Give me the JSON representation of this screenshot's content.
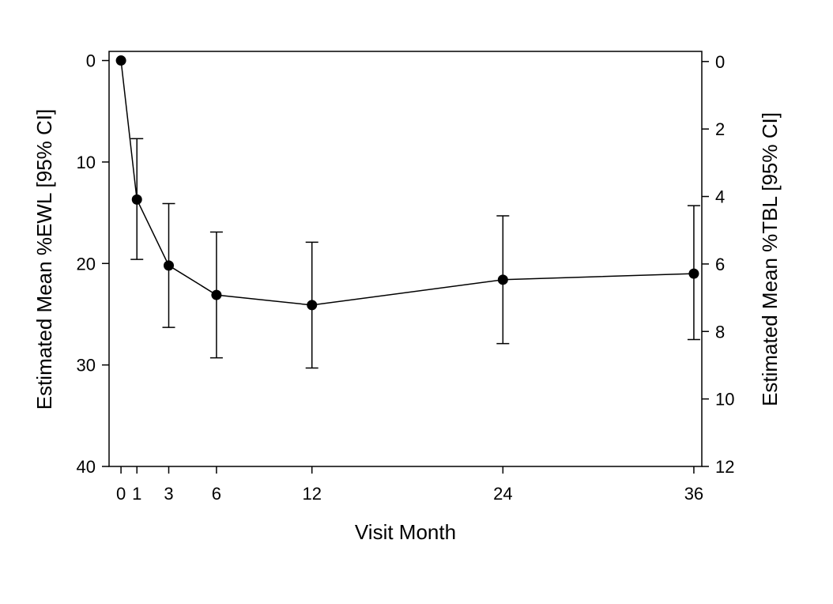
{
  "chart_data": {
    "type": "line",
    "xlabel": "Visit Month",
    "ylabel_left": "Estimated Mean %EWL [95% CI]",
    "ylabel_right": "Estimated Mean %TBL [95% CI]",
    "x_ticks": [
      0,
      1,
      3,
      6,
      12,
      24,
      36
    ],
    "xlim": [
      -0.75,
      36.5
    ],
    "y_left_ticks": [
      0,
      10,
      20,
      30,
      40
    ],
    "y_left_lim": [
      -0.9,
      40
    ],
    "y_left_inverted": true,
    "y_right_ticks": [
      0,
      2,
      4,
      6,
      8,
      10,
      12
    ],
    "y_right_lim": [
      -0.3,
      12
    ],
    "y_right_inverted": true,
    "grid": false,
    "series": [
      {
        "x": [
          0,
          1,
          3,
          6,
          12,
          24,
          36
        ],
        "y": [
          0,
          13.7,
          20.2,
          23.1,
          24.1,
          21.6,
          21.0
        ],
        "ci_low": [
          0,
          7.7,
          14.1,
          16.9,
          17.9,
          15.3,
          14.3
        ],
        "ci_high": [
          0,
          19.6,
          26.3,
          29.3,
          30.3,
          27.9,
          27.5
        ]
      }
    ]
  }
}
